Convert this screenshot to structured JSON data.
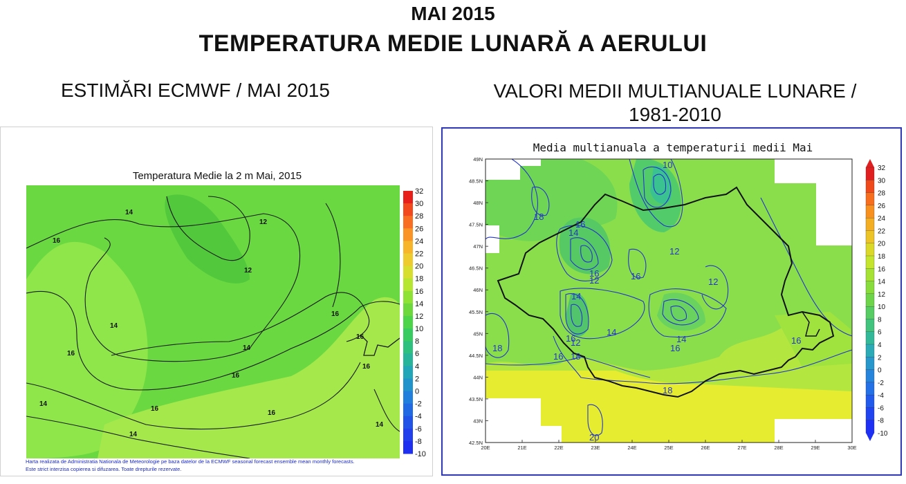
{
  "header": {
    "title_line1": "MAI 2015",
    "title_line2": "TEMPERATURA MEDIE LUNARĂ A AERULUI",
    "subtitle_left": "ESTIMĂRI ECMWF / MAI 2015",
    "subtitle_right": "VALORI MEDII MULTIANUALE LUNARE / 1981-2010"
  },
  "left_map": {
    "title": "Temperatura Medie la 2 m Mai, 2015",
    "colorbar_ticks": [
      "32",
      "30",
      "28",
      "26",
      "24",
      "22",
      "20",
      "18",
      "16",
      "14",
      "12",
      "10",
      "8",
      "6",
      "4",
      "2",
      "0",
      "-2",
      "-4",
      "-6",
      "-8",
      "-10"
    ],
    "colorbar_colors": [
      "#e8201c",
      "#f24a1e",
      "#f86e22",
      "#fa9426",
      "#f6b52a",
      "#eecb2e",
      "#d8de30",
      "#b6e632",
      "#8ee236",
      "#6cd83c",
      "#4ed448",
      "#38cc60",
      "#2ec07e",
      "#28b49a",
      "#22a6b8",
      "#2294cc",
      "#2280dc",
      "#226ae4",
      "#2254e8",
      "#2240ec",
      "#2030f0"
    ],
    "contour_labels": [
      "14",
      "16",
      "12",
      "12",
      "14",
      "16",
      "16",
      "16",
      "14",
      "16",
      "16",
      "16",
      "14",
      "16",
      "14",
      "14"
    ],
    "credit_line1": "Harta realizata de Administratia Nationala de Meteorologie pe baza datelor de la ECMWF seasonal forecast ensemble mean monthly forecasts.",
    "credit_line2": "Este strict interzisa copierea si difuzarea. Toate drepturile rezervate."
  },
  "right_map": {
    "title": "Media multianuala a temperaturii medii Mai",
    "lat_ticks": [
      "49N",
      "48.5N",
      "48N",
      "47.5N",
      "47N",
      "46.5N",
      "46N",
      "45.5N",
      "45N",
      "44.5N",
      "44N",
      "43.5N",
      "43N",
      "42.5N"
    ],
    "lon_ticks": [
      "20E",
      "21E",
      "22E",
      "23E",
      "24E",
      "25E",
      "26E",
      "27E",
      "28E",
      "29E",
      "30E"
    ],
    "colorbar_ticks": [
      "32",
      "30",
      "28",
      "26",
      "24",
      "22",
      "20",
      "18",
      "16",
      "14",
      "12",
      "10",
      "8",
      "6",
      "4",
      "2",
      "0",
      "-2",
      "-4",
      "-6",
      "-8",
      "-10"
    ],
    "colorbar_colors": [
      "#e02020",
      "#ee4a1c",
      "#f66e1e",
      "#f89020",
      "#f4ae24",
      "#ecc428",
      "#dcd82a",
      "#c4e42e",
      "#a6e234",
      "#88dc3c",
      "#6ed44a",
      "#56cc62",
      "#42c47e",
      "#34b89a",
      "#2caab6",
      "#2898cc",
      "#2684dc",
      "#2470e6",
      "#225aec",
      "#2044f0",
      "#1e30f4"
    ],
    "contour_labels": [
      "10",
      "18",
      "16",
      "14",
      "12",
      "16",
      "12",
      "16",
      "12",
      "14",
      "14",
      "16",
      "14",
      "12",
      "18",
      "18",
      "16",
      "16",
      "18",
      "16",
      "20"
    ]
  }
}
